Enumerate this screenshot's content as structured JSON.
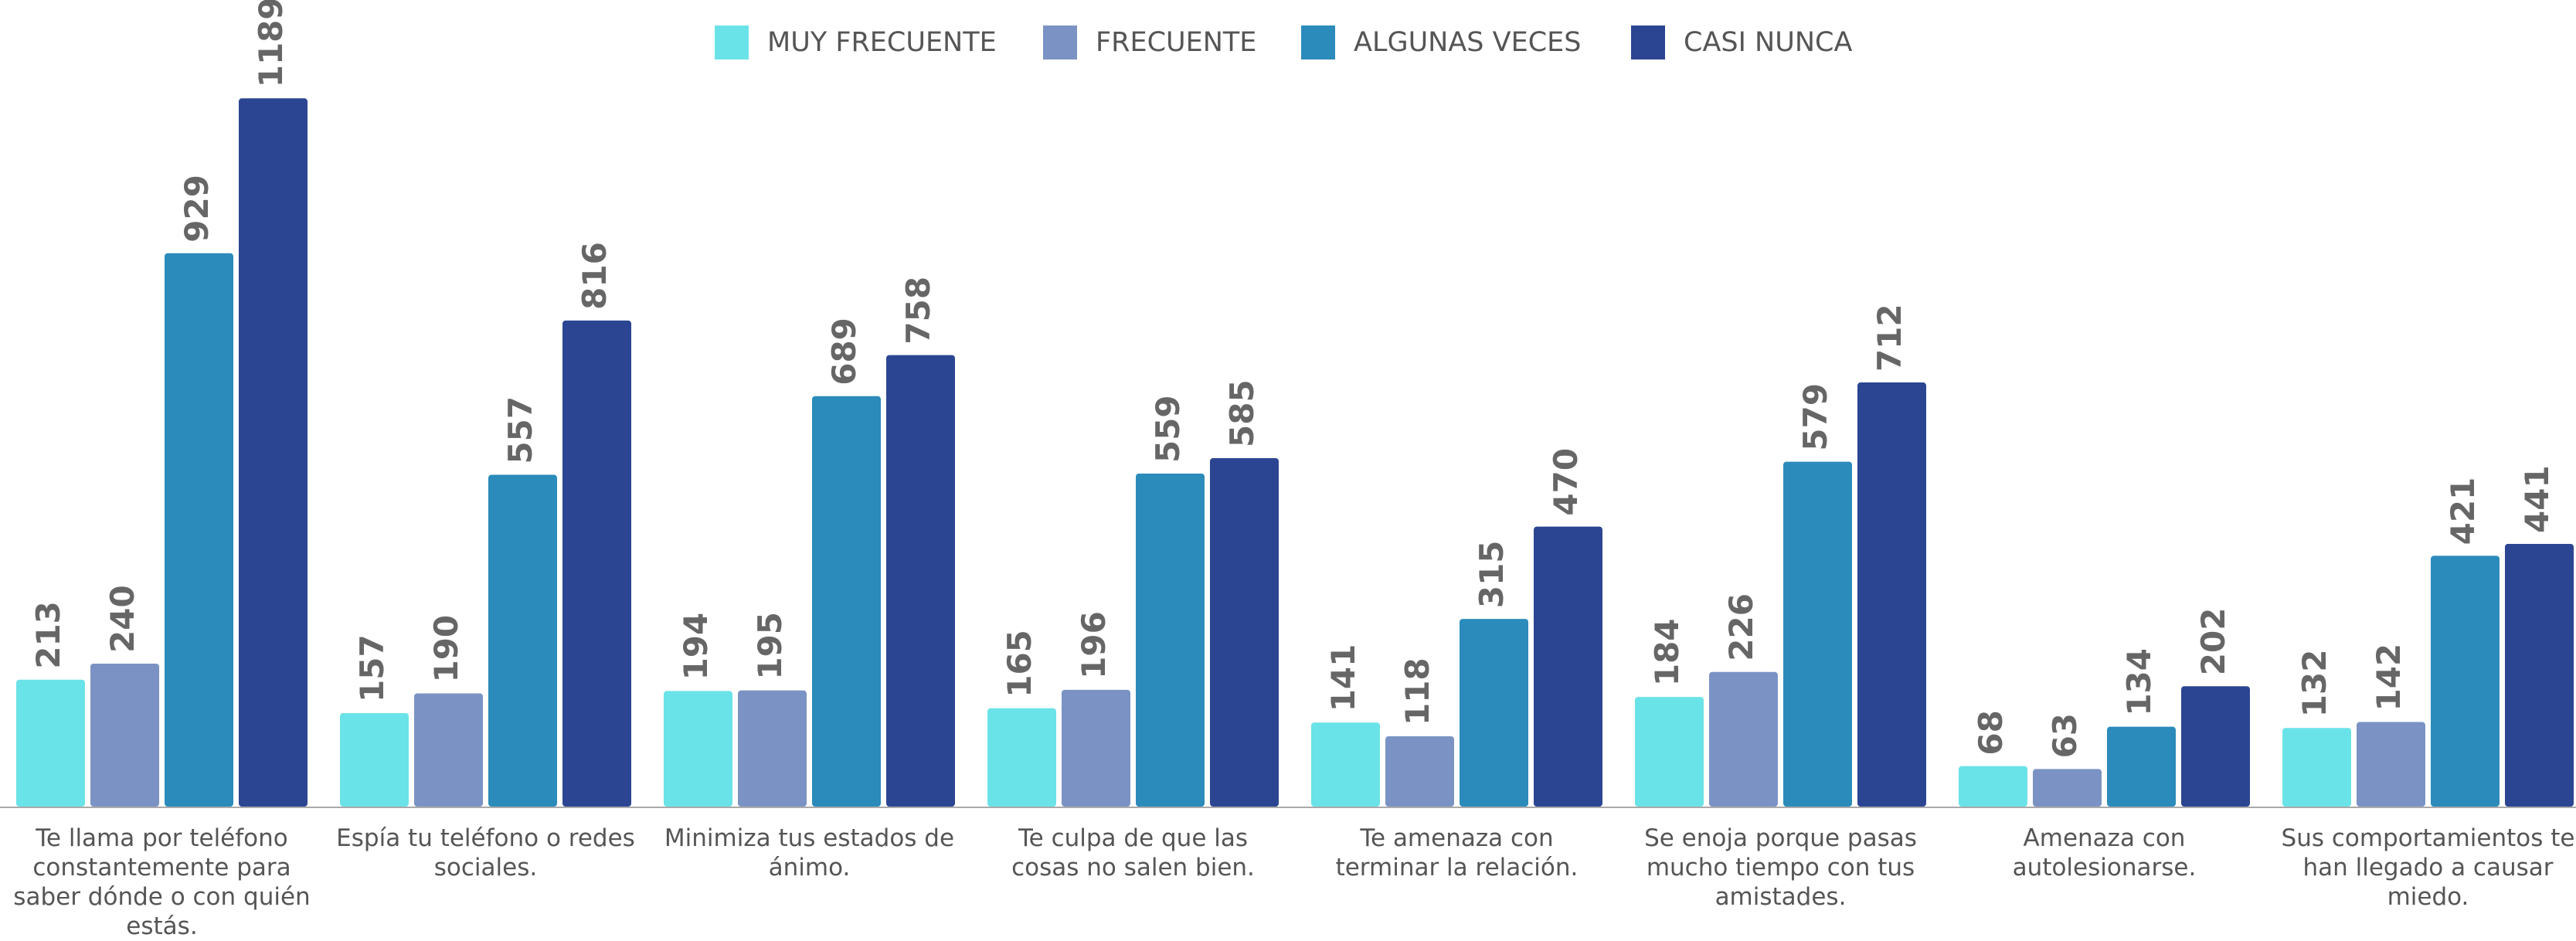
{
  "chart_data": {
    "type": "bar",
    "categories": [
      "Te llama por teléfono constantemente para saber dónde o con quién estás.",
      "Espía tu teléfono o redes sociales.",
      "Minimiza tus estados de ánimo.",
      "Te culpa de que las cosas no salen bien.",
      "Te amenaza con terminar la relación.",
      "Se enoja porque pasas mucho tiempo con tus amistades.",
      "Amenaza con autolesionarse.",
      "Sus comportamientos te han llegado a causar miedo."
    ],
    "series": [
      {
        "name": "MUY FRECUENTE",
        "color": "#6ae3e8",
        "values": [
          213,
          157,
          194,
          165,
          141,
          184,
          68,
          132
        ]
      },
      {
        "name": "FRECUENTE",
        "color": "#7b93c4",
        "values": [
          240,
          190,
          195,
          196,
          118,
          226,
          63,
          142
        ]
      },
      {
        "name": "ALGUNAS VECES",
        "color": "#2b8bba",
        "values": [
          929,
          557,
          689,
          559,
          315,
          579,
          134,
          421
        ]
      },
      {
        "name": "CASI NUNCA",
        "color": "#2c4592",
        "values": [
          1189,
          816,
          758,
          585,
          470,
          712,
          202,
          441
        ]
      }
    ],
    "legend": "top"
  }
}
